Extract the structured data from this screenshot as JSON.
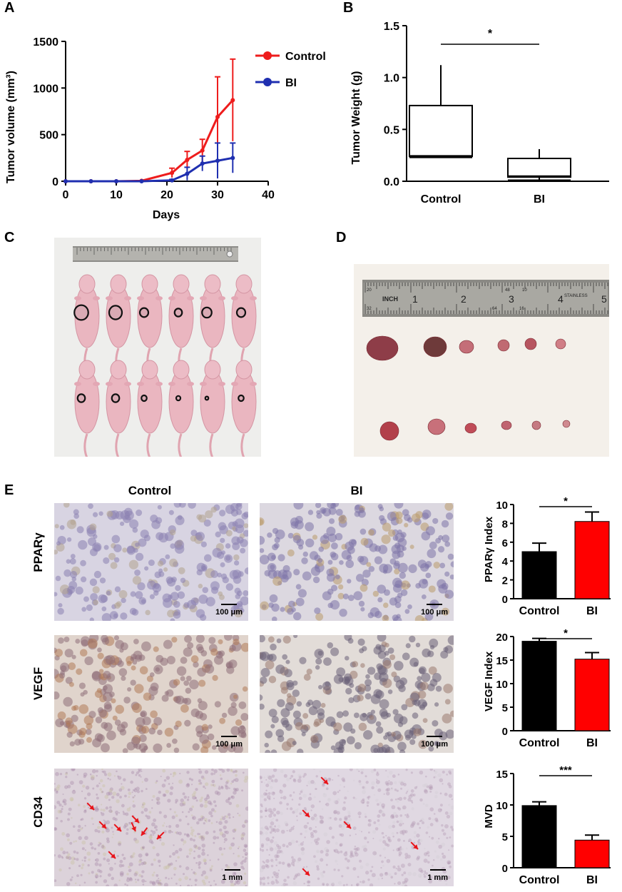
{
  "panels": {
    "a": "A",
    "b": "B",
    "c": "C",
    "d": "D",
    "e": "E"
  },
  "colors": {
    "control": "#ee1c1c",
    "bi": "#1f2fb0",
    "bar_control": "#000000",
    "bar_bi": "#ff0000",
    "arrow": "#e8141a"
  },
  "chart_data": [
    {
      "type": "line",
      "panel": "A",
      "xlabel": "Days",
      "ylabel": "Tumor volume (mm³)",
      "xlim": [
        0,
        40
      ],
      "ylim": [
        0,
        1500
      ],
      "xticks": [
        0,
        10,
        20,
        30,
        40
      ],
      "yticks": [
        0,
        500,
        1000,
        1500
      ],
      "legend": "top-right",
      "series": [
        {
          "name": "Control",
          "color": "#ee1c1c",
          "x": [
            0,
            5,
            10,
            15,
            21,
            24,
            27,
            30,
            33
          ],
          "y": [
            0,
            0,
            0,
            5,
            90,
            230,
            330,
            690,
            870
          ],
          "err": [
            0,
            0,
            0,
            0,
            50,
            90,
            120,
            430,
            440
          ]
        },
        {
          "name": "BI",
          "color": "#1f2fb0",
          "x": [
            0,
            5,
            10,
            15,
            21,
            24,
            27,
            30,
            33
          ],
          "y": [
            0,
            0,
            0,
            0,
            10,
            80,
            190,
            220,
            250
          ],
          "err": [
            0,
            0,
            0,
            0,
            10,
            70,
            80,
            190,
            160
          ]
        }
      ]
    },
    {
      "type": "box",
      "panel": "B",
      "ylabel": "Tumor Weight (g)",
      "ylim": [
        0,
        1.5
      ],
      "yticks": [
        "0.0",
        "0.5",
        "1.0",
        "1.5"
      ],
      "categories": [
        "Control",
        "BI"
      ],
      "boxes": [
        {
          "min": 0.23,
          "q1": 0.24,
          "median": 0.245,
          "q3": 0.73,
          "max": 1.12
        },
        {
          "min": 0.01,
          "q1": 0.04,
          "median": 0.05,
          "q3": 0.22,
          "max": 0.31
        }
      ],
      "significance": "*"
    },
    {
      "type": "bar",
      "panel": "E",
      "ylabel": "PPARγ Index",
      "ylim": [
        0,
        10
      ],
      "yticks": [
        0,
        2,
        4,
        6,
        8,
        10
      ],
      "categories": [
        "Control",
        "BI"
      ],
      "values": [
        5.0,
        8.2
      ],
      "err": [
        0.9,
        1.0
      ],
      "significance": "*"
    },
    {
      "type": "bar",
      "panel": "E",
      "ylabel": "VEGF Index",
      "ylim": [
        0,
        20
      ],
      "yticks": [
        0,
        5,
        10,
        15,
        20
      ],
      "categories": [
        "Control",
        "BI"
      ],
      "values": [
        19.0,
        15.2
      ],
      "err": [
        0.6,
        1.4
      ],
      "significance": "*"
    },
    {
      "type": "bar",
      "panel": "E",
      "ylabel": "MVD",
      "ylim": [
        0,
        15
      ],
      "yticks": [
        0,
        5,
        10,
        15
      ],
      "categories": [
        "Control",
        "BI"
      ],
      "values": [
        9.9,
        4.4
      ],
      "err": [
        0.6,
        0.8
      ],
      "significance": "***"
    }
  ],
  "ruler_c": "",
  "ruler_d": {
    "inch": "INCH",
    "nums": [
      "1",
      "2",
      "3",
      "4",
      "5"
    ],
    "brand": "STAINLESS",
    "small": [
      "20",
      "32",
      "64",
      "10",
      "16",
      "48"
    ]
  },
  "panel_e": {
    "cols": [
      "Control",
      "BI"
    ],
    "rows": [
      "PPARγ",
      "VEGF",
      "CD34"
    ],
    "scalebars": [
      "100  μm",
      "100  μm",
      "100  μm",
      "100  μm",
      "1 mm",
      "1 mm"
    ]
  }
}
